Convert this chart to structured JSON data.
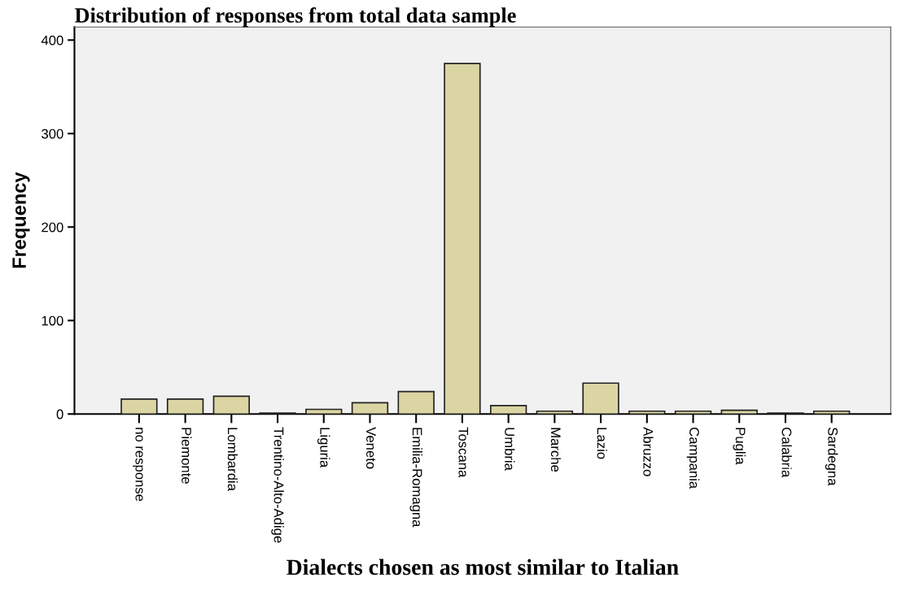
{
  "chart_data": {
    "type": "bar",
    "title": "Distribution of responses from total data sample",
    "xlabel": "Dialects chosen as most similar to Italian",
    "ylabel": "Frequency",
    "categories": [
      "no response",
      "Piemonte",
      "Lombardia",
      "Trentino-Alto-Adige",
      "Liguria",
      "Veneto",
      "Emilia-Romagna",
      "Toscana",
      "Umbria",
      "Marche",
      "Lazio",
      "Abruzzo",
      "Campania",
      "Puglia",
      "Calabria",
      "Sardegna"
    ],
    "values": [
      16,
      16,
      19,
      1,
      5,
      12,
      24,
      375,
      9,
      3,
      33,
      3,
      3,
      4,
      1,
      3
    ],
    "color": "#dad5a3",
    "ylim": [
      0,
      414
    ],
    "yticks": [
      0,
      100,
      200,
      300,
      400
    ],
    "grid": false
  }
}
